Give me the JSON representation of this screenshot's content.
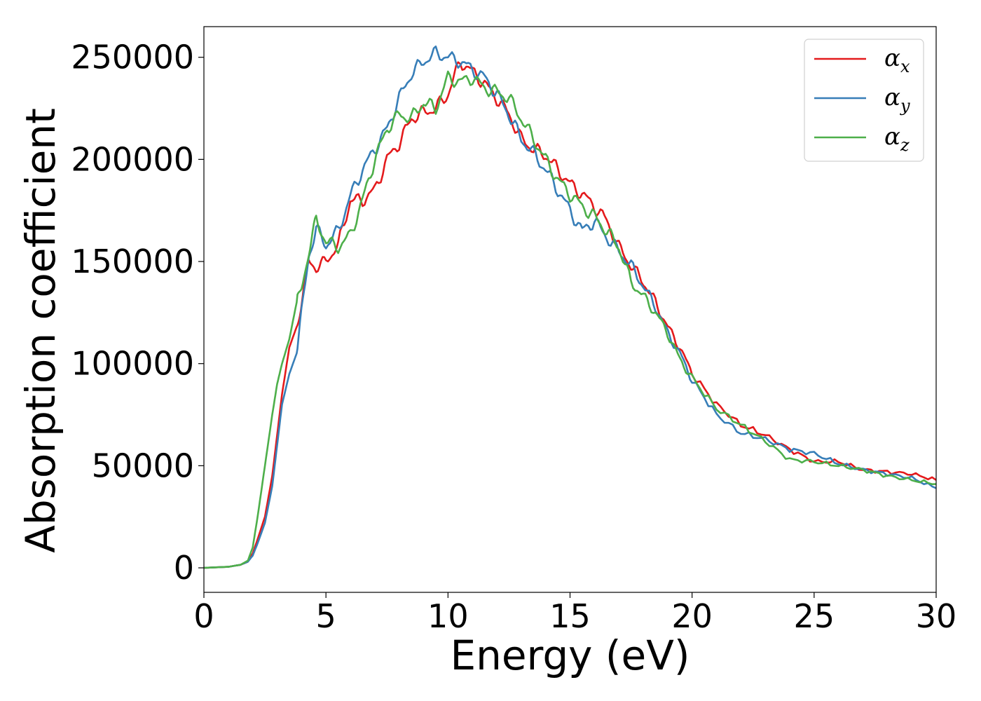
{
  "chart_data": {
    "type": "line",
    "xlabel": "Energy (eV)",
    "ylabel": "Absorption coefficient",
    "xlim": [
      0,
      30
    ],
    "ylim": [
      -12000,
      265000
    ],
    "x_ticks": [
      0,
      5,
      10,
      15,
      20,
      25,
      30
    ],
    "y_ticks": [
      0,
      50000,
      100000,
      150000,
      200000,
      250000
    ],
    "grid": false,
    "legend_position": "top-right",
    "x": [
      0,
      1,
      1.5,
      1.8,
      2,
      2.2,
      2.5,
      2.8,
      3,
      3.2,
      3.5,
      3.8,
      4,
      4.3,
      4.6,
      5,
      5.5,
      6,
      6.5,
      7,
      7.5,
      8,
      8.5,
      9,
      9.5,
      10,
      10.5,
      11,
      11.5,
      12,
      12.5,
      13,
      13.5,
      14,
      14.5,
      15,
      15.5,
      16,
      16.5,
      17,
      17.5,
      18,
      18.5,
      19,
      19.5,
      20,
      21,
      22,
      23,
      24,
      25,
      26,
      27,
      28,
      29,
      30
    ],
    "series": [
      {
        "name_base": "α",
        "name_sub": "x",
        "color": "#e41a1c",
        "values": [
          0,
          500,
          1500,
          3000,
          7000,
          14000,
          25000,
          45000,
          65000,
          85000,
          108000,
          118000,
          130000,
          150000,
          147000,
          150000,
          158000,
          180000,
          180000,
          185000,
          200000,
          208000,
          220000,
          223000,
          225000,
          232000,
          248000,
          243000,
          237000,
          230000,
          222000,
          210000,
          205000,
          202000,
          195000,
          188000,
          183000,
          177000,
          170000,
          157000,
          148000,
          140000,
          130000,
          118000,
          108000,
          95000,
          80000,
          70000,
          65000,
          58000,
          52000,
          52000,
          48000,
          47000,
          46000,
          43000
        ]
      },
      {
        "name_base": "α",
        "name_sub": "y",
        "color": "#377eb8",
        "values": [
          0,
          500,
          1500,
          3000,
          6000,
          12000,
          22000,
          40000,
          60000,
          80000,
          95000,
          105000,
          125000,
          153000,
          166000,
          158000,
          165000,
          182000,
          195000,
          205000,
          215000,
          230000,
          242000,
          248000,
          252000,
          250000,
          248000,
          244000,
          240000,
          232000,
          222000,
          210000,
          203000,
          195000,
          185000,
          175000,
          165000,
          170000,
          162000,
          155000,
          148000,
          138000,
          128000,
          115000,
          105000,
          92000,
          75000,
          66000,
          63000,
          58000,
          56000,
          51000,
          48000,
          46000,
          44000,
          39000
        ]
      },
      {
        "name_base": "α",
        "name_sub": "z",
        "color": "#4daf4a",
        "values": [
          0,
          500,
          1500,
          3500,
          10000,
          25000,
          50000,
          75000,
          90000,
          100000,
          112000,
          130000,
          137000,
          155000,
          170000,
          160000,
          157000,
          163000,
          180000,
          200000,
          215000,
          222000,
          220000,
          228000,
          225000,
          240000,
          238000,
          240000,
          235000,
          233000,
          230000,
          220000,
          210000,
          200000,
          190000,
          183000,
          177000,
          172000,
          165000,
          157000,
          140000,
          133000,
          125000,
          115000,
          102000,
          93000,
          78000,
          70000,
          62000,
          53000,
          52000,
          50000,
          48000,
          45000,
          43000,
          41000
        ]
      }
    ]
  }
}
